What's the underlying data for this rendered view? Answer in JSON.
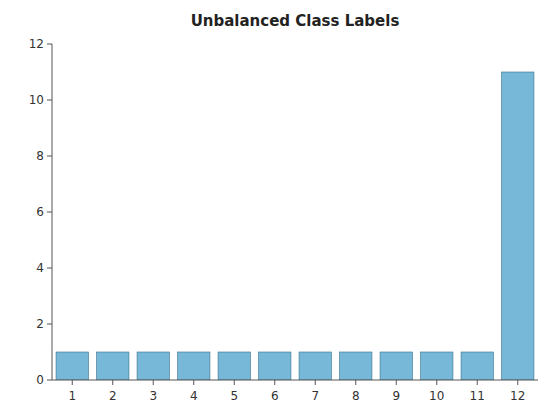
{
  "chart_data": {
    "type": "bar",
    "title": "Unbalanced Class Labels",
    "categories": [
      "1",
      "2",
      "3",
      "4",
      "5",
      "6",
      "7",
      "8",
      "9",
      "10",
      "11",
      "12"
    ],
    "values": [
      1,
      1,
      1,
      1,
      1,
      1,
      1,
      1,
      1,
      1,
      1,
      11
    ],
    "color": "#77b8d8",
    "ylim": [
      0,
      12
    ],
    "yticks": [
      0,
      2,
      4,
      6,
      8,
      10,
      12
    ],
    "grid": false
  }
}
